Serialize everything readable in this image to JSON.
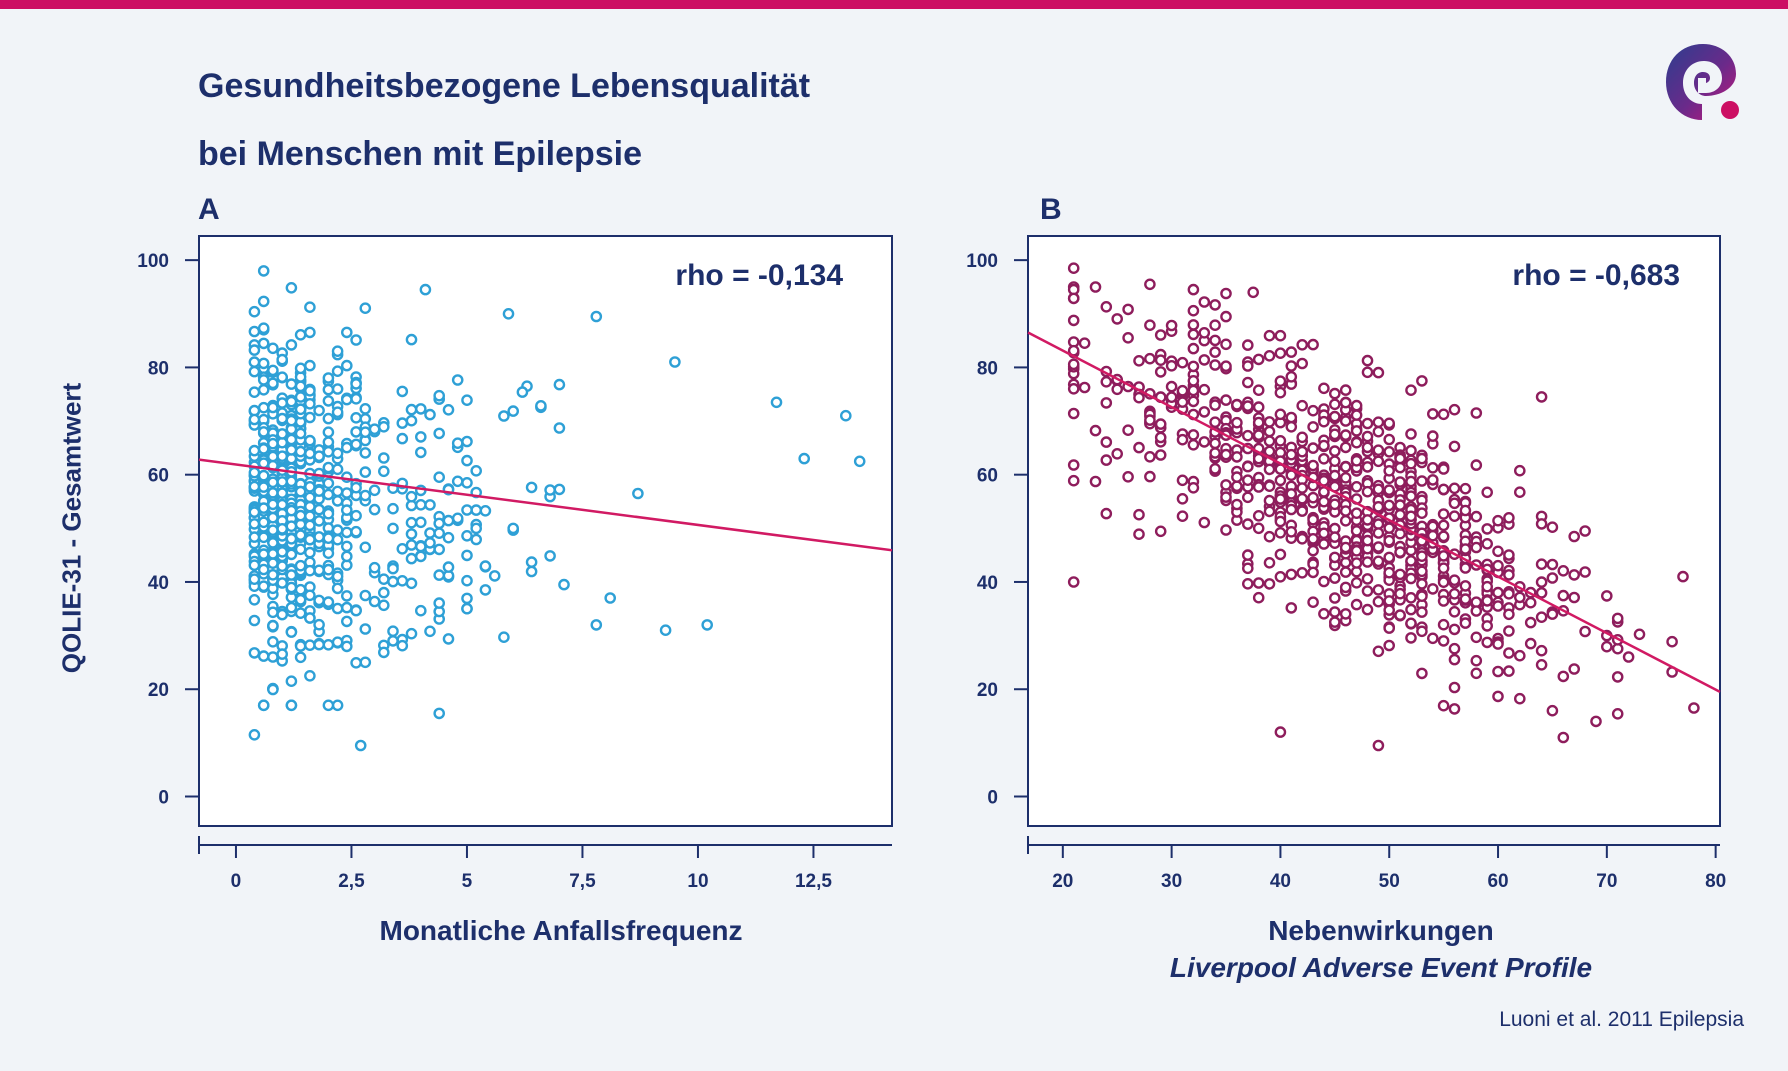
{
  "title_line1": "Gesundheitsbezogene Lebensqualität",
  "title_line2": "bei Menschen mit Epilepsie",
  "ylabel": "QOLIE-31 - Gesamtwert",
  "source": "Luoni et al. 2011 Epilepsia",
  "colors": {
    "bar": "#cc0f63",
    "text": "#1d2f6b",
    "series_a": "#2ea0d6",
    "series_b": "#8e1d5c",
    "trend": "#d11a63"
  },
  "chart_data": [
    {
      "panel": "A",
      "type": "scatter",
      "annotation": "rho = -0,134",
      "xlabel": "Monatliche Anfallsfrequenz",
      "x_ticks": [
        "0",
        "2,5",
        "5",
        "7,5",
        "10",
        "12,5"
      ],
      "x_tick_values": [
        0,
        2.5,
        5,
        7.5,
        10,
        12.5
      ],
      "y_ticks": [
        "0",
        "20",
        "40",
        "60",
        "80",
        "100"
      ],
      "y_tick_values": [
        0,
        20,
        40,
        60,
        80,
        100
      ],
      "xlim": [
        -0.8,
        14.2
      ],
      "ylim": [
        -5.5,
        104.5
      ],
      "trendline": [
        [
          -0.8,
          62.8
        ],
        [
          14.2,
          45.9
        ]
      ],
      "points_count": 700,
      "highlight_points": [
        [
          0.4,
          11.5
        ],
        [
          0.6,
          98
        ],
        [
          2.7,
          9.5
        ],
        [
          7.8,
          89.5
        ],
        [
          9.5,
          81
        ],
        [
          11.7,
          73.5
        ],
        [
          12.3,
          63
        ],
        [
          13.2,
          71
        ],
        [
          13.5,
          62.5
        ],
        [
          8.7,
          56.5
        ],
        [
          9.3,
          31
        ],
        [
          10.2,
          32
        ],
        [
          8.1,
          37
        ],
        [
          7.8,
          32
        ],
        [
          7.1,
          39.5
        ],
        [
          6.3,
          76.5
        ],
        [
          5.9,
          90
        ],
        [
          4.1,
          94.5
        ],
        [
          4.4,
          15.5
        ]
      ]
    },
    {
      "panel": "B",
      "type": "scatter",
      "annotation": "rho = -0,683",
      "xlabel": "Nebenwirkungen",
      "xsublabel": "Liverpool Adverse Event Profile",
      "x_ticks": [
        "20",
        "30",
        "40",
        "50",
        "60",
        "70",
        "80"
      ],
      "x_tick_values": [
        20,
        30,
        40,
        50,
        60,
        70,
        80
      ],
      "y_ticks": [
        "0",
        "20",
        "40",
        "60",
        "80",
        "100"
      ],
      "y_tick_values": [
        0,
        20,
        40,
        60,
        80,
        100
      ],
      "xlim": [
        16.8,
        80.4
      ],
      "ylim": [
        -5.5,
        104.5
      ],
      "trendline": [
        [
          16.8,
          86.5
        ],
        [
          80.4,
          19.5
        ]
      ],
      "points_count": 850,
      "highlight_points": [
        [
          21,
          98.5
        ],
        [
          21,
          40
        ],
        [
          40,
          12
        ],
        [
          49,
          9.5
        ],
        [
          66,
          11
        ],
        [
          78,
          16.5
        ],
        [
          77,
          41
        ],
        [
          72,
          26
        ],
        [
          65,
          16
        ],
        [
          28,
          95.5
        ],
        [
          32,
          94.5
        ],
        [
          37.5,
          94
        ]
      ]
    }
  ]
}
